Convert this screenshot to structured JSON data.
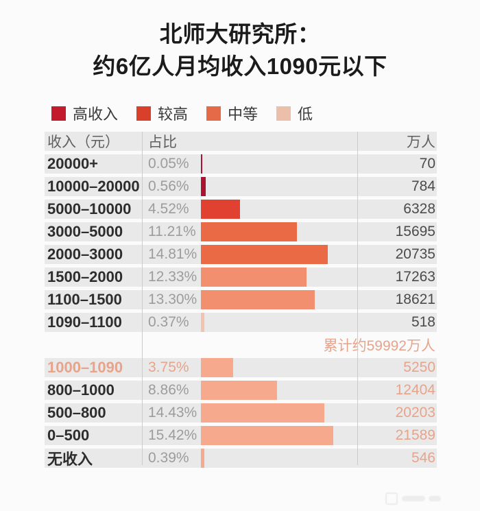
{
  "title": {
    "line1": "北师大研究所：",
    "line2": "约6亿人月均收入1090元以下"
  },
  "legend": [
    {
      "label": "高收入",
      "color": "#c31a2e"
    },
    {
      "label": "较高",
      "color": "#d8402c"
    },
    {
      "label": "中等",
      "color": "#e56a48"
    },
    {
      "label": "低",
      "color": "#ecbfab"
    }
  ],
  "table": {
    "headers": {
      "income": "收入（元）",
      "share": "占比",
      "unit": "万人"
    },
    "annotation": "累计约59992万人",
    "annotation_after_index": 7,
    "rows": [
      {
        "range": "20000+",
        "pct_label": "0.05%",
        "pct": 0.05,
        "people": "70",
        "color": "high",
        "label_c": "dark",
        "pct_c": "gray",
        "val_c": "dark"
      },
      {
        "range": "10000–20000",
        "pct_label": "0.56%",
        "pct": 0.56,
        "people": "784",
        "color": "high",
        "label_c": "dark",
        "pct_c": "gray",
        "val_c": "dark"
      },
      {
        "range": "5000–10000",
        "pct_label": "4.52%",
        "pct": 4.52,
        "people": "6328",
        "color": "upper",
        "label_c": "dark",
        "pct_c": "gray",
        "val_c": "dark"
      },
      {
        "range": "3000–5000",
        "pct_label": "11.21%",
        "pct": 11.21,
        "people": "15695",
        "color": "mid",
        "label_c": "dark",
        "pct_c": "gray",
        "val_c": "dark"
      },
      {
        "range": "2000–3000",
        "pct_label": "14.81%",
        "pct": 14.81,
        "people": "20735",
        "color": "mid",
        "label_c": "dark",
        "pct_c": "gray",
        "val_c": "dark"
      },
      {
        "range": "1500–2000",
        "pct_label": "12.33%",
        "pct": 12.33,
        "people": "17263",
        "color": "mid_light",
        "label_c": "dark",
        "pct_c": "gray",
        "val_c": "dark"
      },
      {
        "range": "1100–1500",
        "pct_label": "13.30%",
        "pct": 13.3,
        "people": "18621",
        "color": "mid_light",
        "label_c": "dark",
        "pct_c": "gray",
        "val_c": "dark"
      },
      {
        "range": "1090–1100",
        "pct_label": "0.37%",
        "pct": 0.37,
        "people": "518",
        "color": "low_pale",
        "label_c": "dark",
        "pct_c": "gray",
        "val_c": "dark"
      },
      {
        "range": "1000–1090",
        "pct_label": "3.75%",
        "pct": 3.75,
        "people": "5250",
        "color": "low",
        "label_c": "accent",
        "pct_c": "accent",
        "val_c": "accent"
      },
      {
        "range": "800–1000",
        "pct_label": "8.86%",
        "pct": 8.86,
        "people": "12404",
        "color": "low",
        "label_c": "dark",
        "pct_c": "gray",
        "val_c": "accent"
      },
      {
        "range": "500–800",
        "pct_label": "14.43%",
        "pct": 14.43,
        "people": "20203",
        "color": "low",
        "label_c": "dark",
        "pct_c": "gray",
        "val_c": "accent"
      },
      {
        "range": "0–500",
        "pct_label": "15.42%",
        "pct": 15.42,
        "people": "21589",
        "color": "low",
        "label_c": "dark",
        "pct_c": "gray",
        "val_c": "accent"
      },
      {
        "range": "无收入",
        "pct_label": "0.39%",
        "pct": 0.39,
        "people": "546",
        "color": "low",
        "label_c": "dark",
        "pct_c": "gray",
        "val_c": "accent"
      }
    ]
  },
  "colors": {
    "high": "#a91430",
    "upper": "#e04130",
    "mid": "#e96a44",
    "mid_light": "#f28f6e",
    "low": "#f6a98c",
    "low_pale": "#f4c2ae",
    "accent_text": "#e8a38b",
    "dark_label": "#2d2d2d",
    "gray_text": "#9c9c9c",
    "dark_value": "#4b4b4b"
  },
  "chart_data": {
    "type": "bar",
    "orientation": "horizontal",
    "title": "北师大研究所：约6亿人月均收入1090元以下",
    "categories": [
      "20000+",
      "10000–20000",
      "5000–10000",
      "3000–5000",
      "2000–3000",
      "1500–2000",
      "1100–1500",
      "1090–1100",
      "1000–1090",
      "800–1000",
      "500–800",
      "0–500",
      "无收入"
    ],
    "series": [
      {
        "name": "占比(%)",
        "values": [
          0.05,
          0.56,
          4.52,
          11.21,
          14.81,
          12.33,
          13.3,
          0.37,
          3.75,
          8.86,
          14.43,
          15.42,
          0.39
        ]
      },
      {
        "name": "万人",
        "values": [
          70,
          784,
          6328,
          15695,
          20735,
          17263,
          18621,
          518,
          5250,
          12404,
          20203,
          21589,
          546
        ]
      }
    ],
    "legend_entries": [
      "高收入",
      "较高",
      "中等",
      "低"
    ],
    "legend_position": "top-left",
    "annotations": [
      "累计约59992万人"
    ],
    "xlabel": "占比",
    "ylabel": "收入（元）",
    "xlim": [
      0,
      16
    ],
    "grid": false
  }
}
